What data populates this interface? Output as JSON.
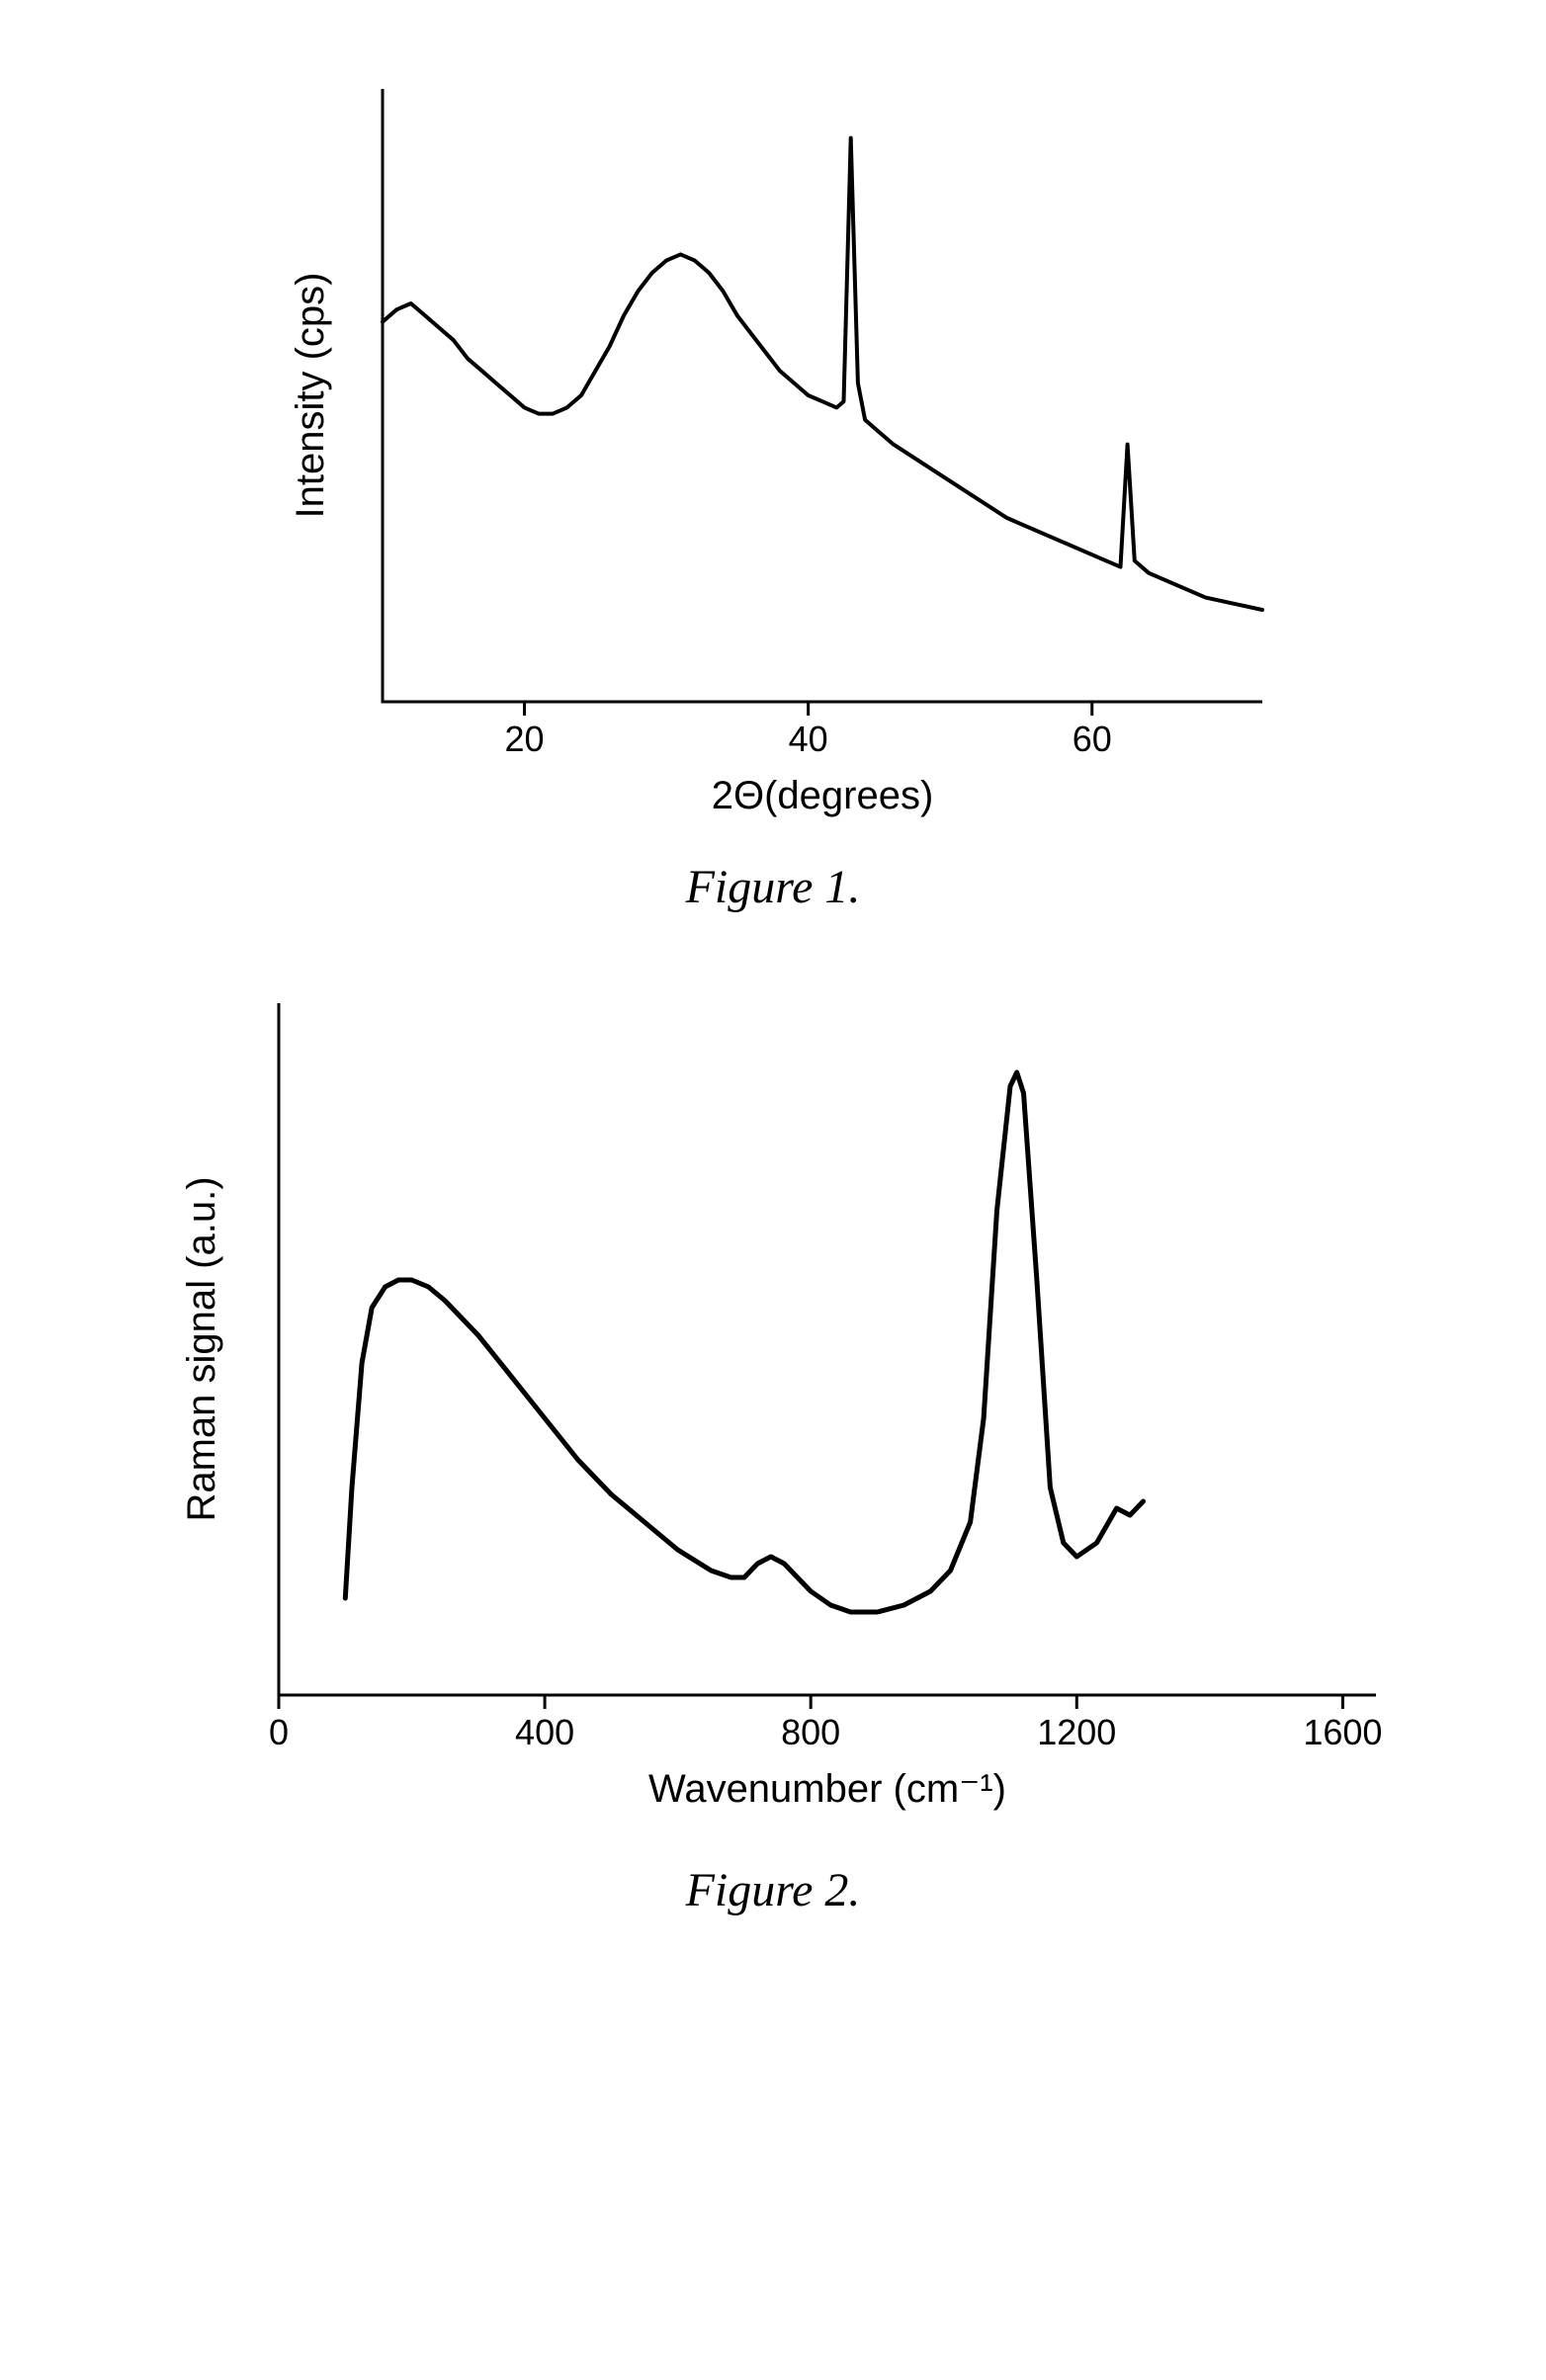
{
  "figure1": {
    "type": "line",
    "caption": "Figure 1.",
    "xlabel": "2Θ(degrees)",
    "ylabel": "Intensity (cps)",
    "xlim": [
      10,
      72
    ],
    "ylim": [
      0,
      100
    ],
    "xticks": [
      20,
      40,
      60
    ],
    "xtick_labels": [
      "20",
      "40",
      "60"
    ],
    "yticks": [],
    "ytick_labels": [],
    "tick_fontsize": 36,
    "label_fontsize": 40,
    "line_color": "#000000",
    "line_width": 4,
    "axis_color": "#000000",
    "axis_width": 3,
    "background_color": "#ffffff",
    "data": [
      [
        10,
        62
      ],
      [
        11,
        64
      ],
      [
        12,
        65
      ],
      [
        13,
        63
      ],
      [
        14,
        61
      ],
      [
        15,
        59
      ],
      [
        16,
        56
      ],
      [
        17,
        54
      ],
      [
        18,
        52
      ],
      [
        19,
        50
      ],
      [
        20,
        48
      ],
      [
        21,
        47
      ],
      [
        22,
        47
      ],
      [
        23,
        48
      ],
      [
        24,
        50
      ],
      [
        25,
        54
      ],
      [
        26,
        58
      ],
      [
        27,
        63
      ],
      [
        28,
        67
      ],
      [
        29,
        70
      ],
      [
        30,
        72
      ],
      [
        31,
        73
      ],
      [
        32,
        72
      ],
      [
        33,
        70
      ],
      [
        34,
        67
      ],
      [
        35,
        63
      ],
      [
        36,
        60
      ],
      [
        37,
        57
      ],
      [
        38,
        54
      ],
      [
        39,
        52
      ],
      [
        40,
        50
      ],
      [
        41,
        49
      ],
      [
        42,
        48
      ],
      [
        42.5,
        49
      ],
      [
        43,
        92
      ],
      [
        43.5,
        52
      ],
      [
        44,
        46
      ],
      [
        45,
        44
      ],
      [
        46,
        42
      ],
      [
        48,
        39
      ],
      [
        50,
        36
      ],
      [
        52,
        33
      ],
      [
        54,
        30
      ],
      [
        56,
        28
      ],
      [
        58,
        26
      ],
      [
        60,
        24
      ],
      [
        61,
        23
      ],
      [
        62,
        22
      ],
      [
        62.5,
        42
      ],
      [
        63,
        23
      ],
      [
        64,
        21
      ],
      [
        66,
        19
      ],
      [
        68,
        17
      ],
      [
        70,
        16
      ],
      [
        72,
        15
      ]
    ]
  },
  "figure2": {
    "type": "line",
    "caption": "Figure 2.",
    "xlabel": "Wavenumber (cm⁻¹)",
    "ylabel": "Raman signal (a.u.)",
    "xlim": [
      0,
      1650
    ],
    "ylim": [
      0,
      100
    ],
    "xticks": [
      0,
      400,
      800,
      1200,
      1600
    ],
    "xtick_labels": [
      "0",
      "400",
      "800",
      "1200",
      "1600"
    ],
    "yticks": [],
    "ytick_labels": [],
    "tick_fontsize": 36,
    "label_fontsize": 40,
    "line_color": "#000000",
    "line_width": 5,
    "axis_color": "#000000",
    "axis_width": 3,
    "background_color": "#ffffff",
    "data": [
      [
        100,
        14
      ],
      [
        110,
        30
      ],
      [
        125,
        48
      ],
      [
        140,
        56
      ],
      [
        160,
        59
      ],
      [
        180,
        60
      ],
      [
        200,
        60
      ],
      [
        225,
        59
      ],
      [
        250,
        57
      ],
      [
        300,
        52
      ],
      [
        350,
        46
      ],
      [
        400,
        40
      ],
      [
        450,
        34
      ],
      [
        500,
        29
      ],
      [
        550,
        25
      ],
      [
        600,
        21
      ],
      [
        650,
        18
      ],
      [
        680,
        17
      ],
      [
        700,
        17
      ],
      [
        720,
        19
      ],
      [
        740,
        20
      ],
      [
        760,
        19
      ],
      [
        780,
        17
      ],
      [
        800,
        15
      ],
      [
        830,
        13
      ],
      [
        860,
        12
      ],
      [
        900,
        12
      ],
      [
        940,
        13
      ],
      [
        980,
        15
      ],
      [
        1010,
        18
      ],
      [
        1040,
        25
      ],
      [
        1060,
        40
      ],
      [
        1080,
        70
      ],
      [
        1100,
        88
      ],
      [
        1110,
        90
      ],
      [
        1120,
        87
      ],
      [
        1140,
        60
      ],
      [
        1160,
        30
      ],
      [
        1180,
        22
      ],
      [
        1200,
        20
      ],
      [
        1230,
        22
      ],
      [
        1260,
        27
      ],
      [
        1280,
        26
      ],
      [
        1300,
        28
      ]
    ]
  }
}
